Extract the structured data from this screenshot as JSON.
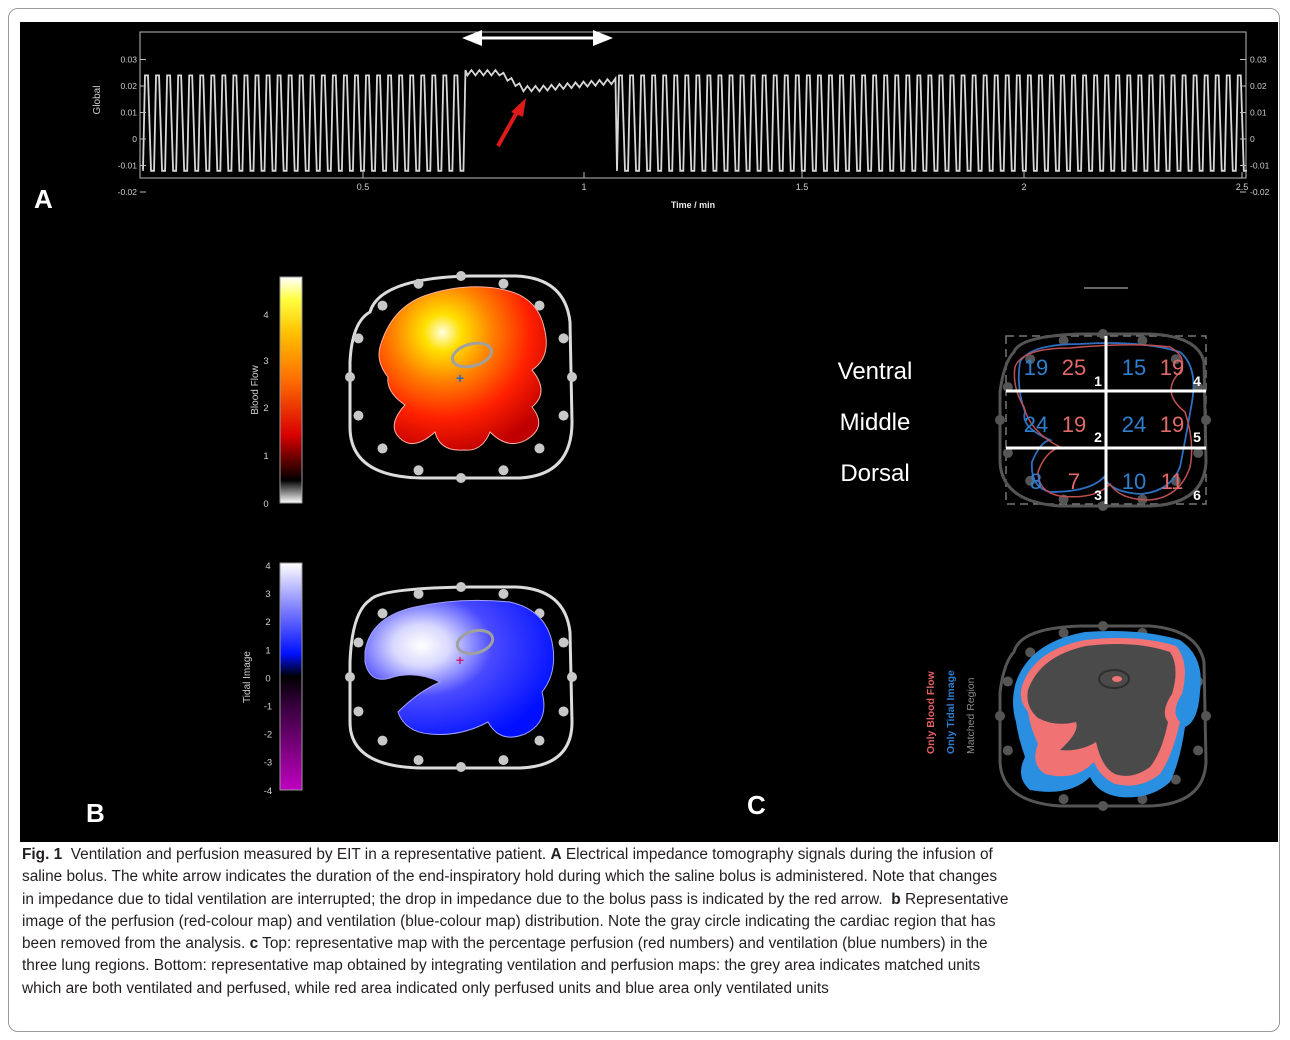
{
  "panel_a": {
    "letter": "A",
    "y_label": "Global",
    "x_label": "Time / min",
    "y_ticks_left": [
      "0.03",
      "0.02",
      "0.01",
      "0",
      "-0.01",
      "-0.02"
    ],
    "y_ticks_right": [
      "0.03",
      "0.02",
      "0.01",
      "0",
      "-0.01",
      "-0.02"
    ],
    "x_ticks": [
      "0.5",
      "1",
      "1.5",
      "2",
      "2.5"
    ],
    "annotations": {
      "white_arrow": "end-inspiratory hold (double-headed white arrow)",
      "red_arrow": "bolus pass drop (red arrow)"
    },
    "colors": {
      "signal": "#d8d8d8",
      "white_arrow": "#ffffff",
      "red_arrow": "#e01a1a",
      "axis": "#c8c8c8"
    }
  },
  "panel_b": {
    "letter": "B",
    "blood_flow_label": "Blood Flow",
    "blood_flow_ticks": [
      "4",
      "3",
      "2",
      "1",
      "0"
    ],
    "tidal_label": "Tidal Image",
    "tidal_ticks": [
      "4",
      "3",
      "2",
      "1",
      "0",
      "-1",
      "-2",
      "-3",
      "-4"
    ]
  },
  "panel_c": {
    "letter": "C",
    "regions": [
      "Ventral",
      "Middle",
      "Dorsal"
    ],
    "grid": {
      "rows": [
        {
          "left_blue": "19",
          "left_red": "25",
          "left_idx": "1",
          "right_blue": "15",
          "right_red": "19",
          "right_idx": "4"
        },
        {
          "left_blue": "24",
          "left_red": "19",
          "left_idx": "2",
          "right_blue": "24",
          "right_red": "19",
          "right_idx": "5"
        },
        {
          "left_blue": "8",
          "left_red": "7",
          "left_idx": "3",
          "right_blue": "10",
          "right_red": "11",
          "right_idx": "6"
        }
      ]
    },
    "legend": [
      "Only Blood Flow",
      "Only Tidal Image",
      "Matched Region"
    ],
    "colors": {
      "red_numbers": "#e06a6a",
      "blue_numbers": "#2f7fd0",
      "only_blood_flow": "#f07272",
      "only_tidal": "#2a8fe0",
      "matched": "#4a4a4a"
    }
  },
  "caption": {
    "fig_label": "Fig. 1",
    "line1_text": "Ventilation and perfusion measured by EIT in a representative patient.",
    "a_label": "A",
    "a_text_1": "Electrical impedance tomography signals during the infusion of",
    "line2": "saline bolus. The white arrow indicates the duration of the end-inspiratory hold during which the saline bolus is administered. Note that changes",
    "line3_pre": "in impedance due to tidal ventilation are interrupted; the drop in impedance due to the bolus pass is indicated by the red arrow.",
    "b_label": "b",
    "b_text_1": "Representative",
    "line4": "image of the perfusion (red-colour map) and ventilation (blue-colour map) distribution. Note the gray circle indicating the cardiac region that has",
    "line5_pre": "been removed from the analysis.",
    "c_label": "c",
    "c_text_1": "Top: representative map with the percentage perfusion (red numbers) and ventilation (blue numbers) in the",
    "line6": "three lung regions. Bottom: representative map obtained by integrating ventilation and perfusion maps: the grey area indicates matched units",
    "line7": "which are both ventilated and perfused, while red area indicated only perfused units and blue area only ventilated units"
  }
}
